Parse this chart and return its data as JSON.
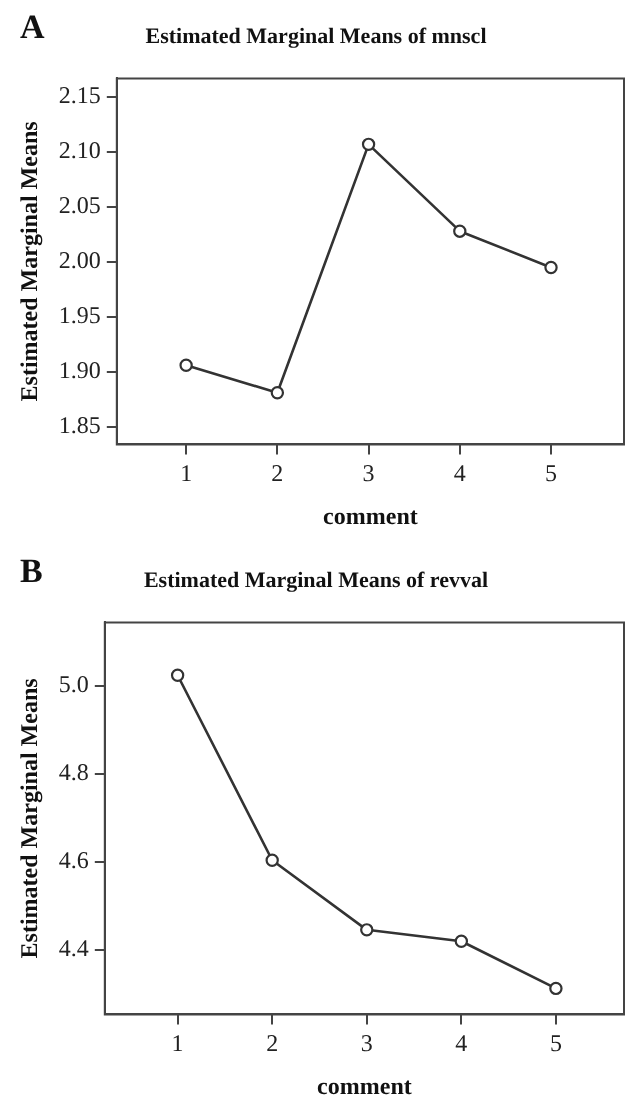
{
  "chart_data": [
    {
      "type": "line",
      "title": "Estimated Marginal Means of mnscl",
      "xlabel": "comment",
      "ylabel": "Estimated Marginal Means",
      "annotations": [
        "A"
      ],
      "x": [
        1,
        2,
        3,
        4,
        5
      ],
      "values": [
        1.906,
        1.881,
        2.107,
        2.028,
        1.995
      ],
      "color": "#333333",
      "xlim": [
        0.24,
        5.8
      ],
      "xticks": [
        1,
        2,
        3,
        4,
        5
      ],
      "ylim": [
        1.834,
        2.167
      ],
      "yticks": [
        1.85,
        {
          "value": 1.9,
          "label": "1.90"
        },
        1.95,
        {
          "value": 2,
          "label": "2.00"
        },
        2.05,
        {
          "value": 2.1,
          "label": "2.10"
        },
        2.15
      ],
      "grid": false,
      "legend": false,
      "marker": "circle",
      "line_style": "solid"
    },
    {
      "type": "line",
      "title": "Estimated Marginal Means of revval",
      "xlabel": "comment",
      "ylabel": "Estimated Marginal Means",
      "annotations": [
        "B"
      ],
      "x": [
        1,
        2,
        3,
        4,
        5
      ],
      "values": [
        5.024,
        4.604,
        4.446,
        4.42,
        4.313
      ],
      "color": "#333333",
      "xlim": [
        0.23,
        5.72
      ],
      "xticks": [
        1,
        2,
        3,
        4,
        5
      ],
      "ylim": [
        4.254,
        5.144
      ],
      "yticks": [
        4.4,
        4.6,
        4.8,
        {
          "value": 5,
          "label": "5.0"
        }
      ],
      "grid": false,
      "legend": false,
      "marker": "circle",
      "line_style": "solid"
    }
  ]
}
